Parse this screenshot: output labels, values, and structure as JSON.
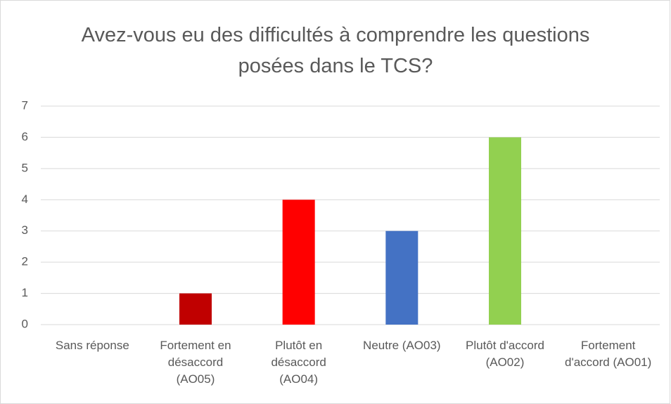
{
  "chart_data": {
    "type": "bar",
    "title": "Avez-vous eu des difficultés à comprendre les questions posées dans le TCS?",
    "categories": [
      "Sans réponse",
      "Fortement en désaccord (AO05)",
      "Plutôt en désaccord (AO04)",
      "Neutre (AO03)",
      "Plutôt d'accord (AO02)",
      "Fortement d'accord (AO01)"
    ],
    "values": [
      0,
      1,
      4,
      3,
      6,
      0
    ],
    "colors": [
      "#a5a5a5",
      "#c00000",
      "#ff0000",
      "#4472c4",
      "#92d050",
      "#00b050"
    ],
    "ylim": [
      0,
      7
    ],
    "yticks": [
      0,
      1,
      2,
      3,
      4,
      5,
      6,
      7
    ],
    "grid": true
  }
}
